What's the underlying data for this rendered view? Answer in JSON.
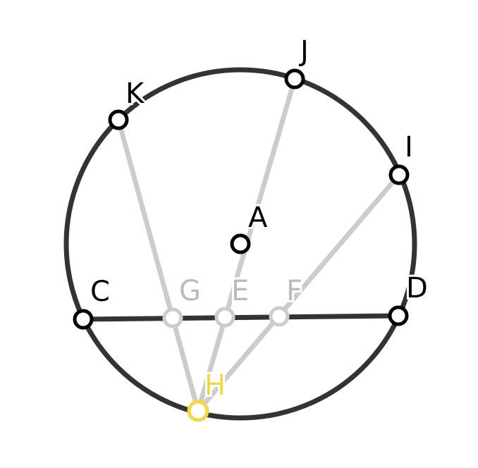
{
  "colors": {
    "background": "#ffffff",
    "primary": "#333333",
    "faded": "#cccccc",
    "faded_label": "#bbbbbb",
    "highlight": "#f2d64b",
    "point_outline": "#000000"
  },
  "points": {
    "A": {
      "label": "A"
    },
    "C": {
      "label": "C"
    },
    "D": {
      "label": "D"
    },
    "E": {
      "label": "E"
    },
    "F": {
      "label": "F"
    },
    "G": {
      "label": "G"
    },
    "H": {
      "label": "H"
    },
    "I": {
      "label": "I"
    },
    "J": {
      "label": "J"
    },
    "K": {
      "label": "K"
    }
  }
}
